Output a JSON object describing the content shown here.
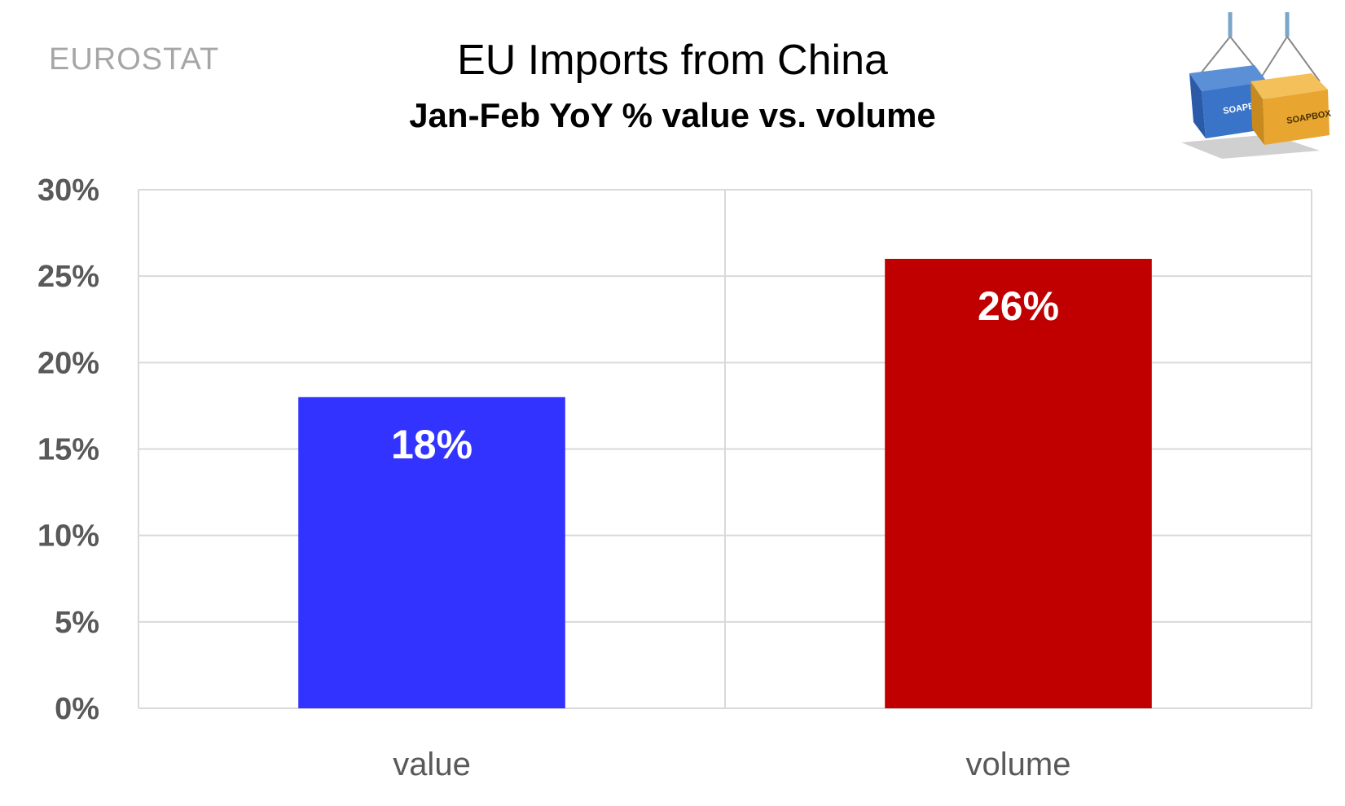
{
  "source_label": "EUROSTAT",
  "colors": {
    "value_bar": "#3333ff",
    "volume_bar": "#c00000",
    "grid": "#d9d9d9",
    "tick_text": "#595959"
  },
  "chart_data": {
    "type": "bar",
    "title": "EU Imports from China",
    "subtitle": "Jan-Feb YoY % value vs. volume",
    "categories": [
      "value",
      "volume"
    ],
    "values": [
      18,
      26
    ],
    "data_labels": [
      "18%",
      "26%"
    ],
    "yticks": [
      "0%",
      "5%",
      "10%",
      "15%",
      "20%",
      "25%",
      "30%"
    ],
    "ylim": [
      0,
      30
    ],
    "grid": true,
    "legend": "none"
  },
  "logo": {
    "icon": "shipping-containers-icon",
    "text": "SOAPBOX"
  }
}
